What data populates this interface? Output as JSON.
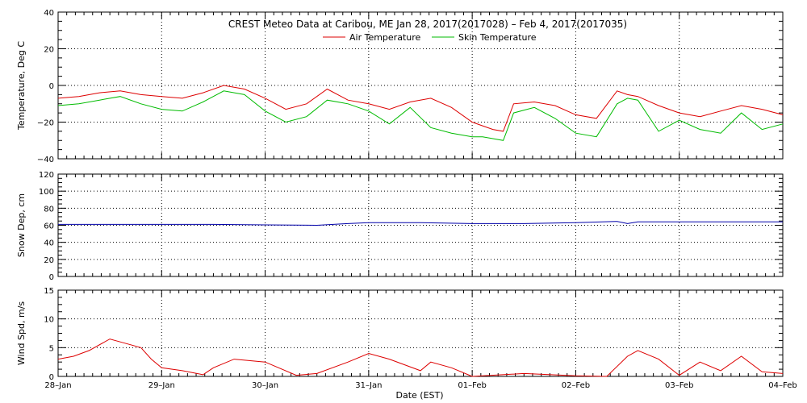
{
  "chart_data": {
    "type": "line",
    "title": "CREST Meteo Data at Caribou, ME   Jan 28, 2017(2017028) – Feb  4, 2017(2017035)",
    "xlabel": "Date (EST)",
    "x_tick_labels": [
      "28–Jan",
      "29–Jan",
      "30–Jan",
      "31–Jan",
      "01–Feb",
      "02–Feb",
      "03–Feb",
      "04–Feb"
    ],
    "xlim_days": [
      0,
      7
    ],
    "grid": true,
    "panels": [
      {
        "ylabel": "Temperature, Deg C",
        "ylim": [
          -40,
          40
        ],
        "y_ticks": [
          -40,
          -20,
          0,
          20,
          40
        ],
        "y_tick_labels": [
          "−40",
          "−20",
          "0",
          "20",
          "40"
        ],
        "legend_position": "top-center",
        "series": [
          {
            "name": "Air Temperature",
            "color": "#dd0000",
            "x_days": [
              0,
              0.2,
              0.4,
              0.6,
              0.8,
              1.0,
              1.2,
              1.4,
              1.6,
              1.8,
              2.0,
              2.2,
              2.4,
              2.6,
              2.8,
              3.0,
              3.2,
              3.4,
              3.6,
              3.8,
              4.0,
              4.1,
              4.2,
              4.3,
              4.4,
              4.6,
              4.8,
              5.0,
              5.2,
              5.4,
              5.5,
              5.6,
              5.8,
              6.0,
              6.2,
              6.4,
              6.6,
              6.8,
              7.0
            ],
            "values": [
              -7,
              -6,
              -4,
              -3,
              -5,
              -6,
              -7,
              -4,
              0,
              -2,
              -7,
              -13,
              -10,
              -2,
              -8,
              -10,
              -13,
              -9,
              -7,
              -12,
              -20,
              -22,
              -24,
              -25,
              -10,
              -9,
              -11,
              -16,
              -18,
              -3,
              -5,
              -6,
              -11,
              -15,
              -17,
              -14,
              -11,
              -13,
              -16
            ]
          },
          {
            "name": "Skin Temperature",
            "color": "#00bb00",
            "x_days": [
              0,
              0.2,
              0.4,
              0.6,
              0.8,
              1.0,
              1.2,
              1.4,
              1.6,
              1.8,
              2.0,
              2.2,
              2.4,
              2.6,
              2.8,
              3.0,
              3.2,
              3.4,
              3.6,
              3.8,
              4.0,
              4.1,
              4.2,
              4.3,
              4.4,
              4.6,
              4.8,
              5.0,
              5.2,
              5.4,
              5.5,
              5.6,
              5.8,
              6.0,
              6.2,
              6.4,
              6.6,
              6.8,
              7.0
            ],
            "values": [
              -11,
              -10,
              -8,
              -6,
              -10,
              -13,
              -14,
              -9,
              -3,
              -5,
              -14,
              -20,
              -17,
              -8,
              -10,
              -14,
              -21,
              -12,
              -23,
              -26,
              -28,
              -28,
              -29,
              -30,
              -15,
              -12,
              -18,
              -26,
              -28,
              -10,
              -7,
              -8,
              -25,
              -19,
              -24,
              -26,
              -15,
              -24,
              -21
            ]
          }
        ]
      },
      {
        "ylabel": "Snow Dep, cm",
        "ylim": [
          0,
          120
        ],
        "y_ticks": [
          0,
          20,
          40,
          60,
          80,
          100,
          120
        ],
        "y_tick_labels": [
          "0",
          "20",
          "40",
          "60",
          "80",
          "100",
          "120"
        ],
        "series": [
          {
            "name": "",
            "color": "#0000aa",
            "x_days": [
              0,
              0.5,
              1.0,
              1.5,
              2.0,
              2.5,
              2.8,
              3.0,
              3.5,
              4.0,
              4.5,
              5.0,
              5.4,
              5.5,
              5.6,
              6.0,
              6.5,
              7.0
            ],
            "values": [
              61,
              61,
              61,
              61,
              60.5,
              60,
              62,
              63,
              63,
              62,
              62,
              63,
              64.5,
              62,
              64,
              64,
              64,
              64
            ]
          }
        ]
      },
      {
        "ylabel": "Wind Spd, m/s",
        "ylim": [
          0,
          15
        ],
        "y_ticks": [
          0,
          5,
          10,
          15
        ],
        "y_tick_labels": [
          "0",
          "5",
          "10",
          "15"
        ],
        "series": [
          {
            "name": "",
            "color": "#dd0000",
            "x_days": [
              0,
              0.15,
              0.3,
              0.5,
              0.6,
              0.8,
              0.9,
              1.0,
              1.2,
              1.4,
              1.5,
              1.7,
              2.0,
              2.3,
              2.5,
              2.8,
              3.0,
              3.2,
              3.5,
              3.6,
              3.8,
              4.0,
              4.5,
              5.0,
              5.3,
              5.5,
              5.6,
              5.8,
              6.0,
              6.2,
              6.4,
              6.6,
              6.8,
              7.0
            ],
            "values": [
              3,
              3.5,
              4.5,
              6.5,
              6,
              5,
              3,
              1.5,
              1,
              0.3,
              1.5,
              3,
              2.5,
              0.2,
              0.5,
              2.5,
              4,
              3,
              1,
              2.5,
              1.5,
              0,
              0.5,
              0.1,
              0,
              3.5,
              4.5,
              3,
              0.2,
              2.5,
              1,
              3.5,
              0.8,
              0.5
            ]
          }
        ]
      }
    ]
  }
}
